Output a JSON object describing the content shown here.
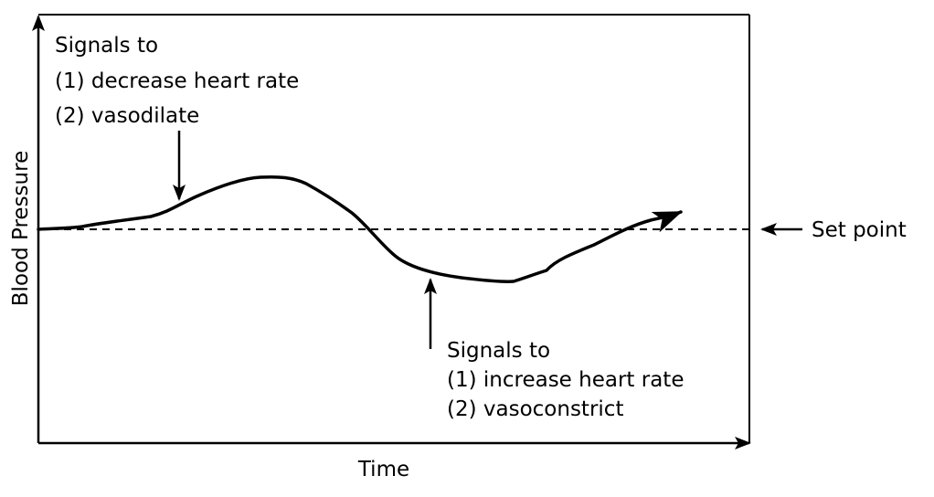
{
  "diagram": {
    "y_axis_label": "Blood Pressure",
    "x_axis_label": "Time",
    "set_point_label": "Set point",
    "top_annotation": [
      "Signals to",
      "(1) decrease heart rate",
      "(2) vasodilate"
    ],
    "bottom_annotation": [
      "Signals to",
      "(1) increase heart rate",
      "(2) vasoconstrict"
    ],
    "colors": {
      "line": "#000000",
      "background": "#ffffff"
    }
  }
}
